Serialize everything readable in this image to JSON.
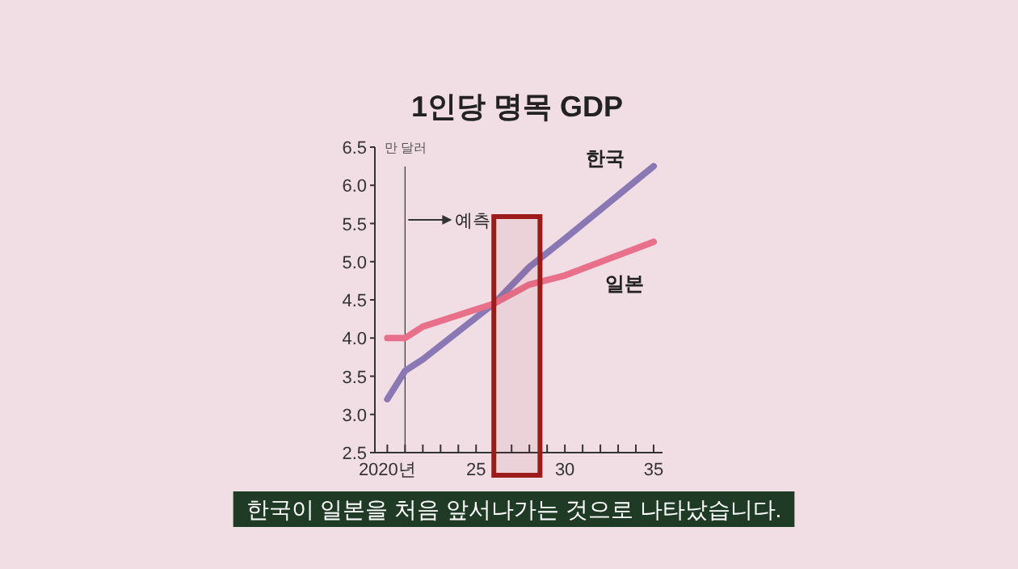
{
  "chart_data": {
    "type": "line",
    "title": "1인당 명목 GDP",
    "ylabel": "만 달러",
    "annotations": [
      "한국이 일본을 처음 앞서나가는 것으로 나타났습니다."
    ],
    "xlim": [
      2019.3,
      2035.5
    ],
    "ylim": [
      2.5,
      6.5
    ],
    "xticks": [
      {
        "value": 2020,
        "label": "2020년"
      },
      {
        "value": 2021,
        "label": null
      },
      {
        "value": 2022,
        "label": null
      },
      {
        "value": 2023,
        "label": null
      },
      {
        "value": 2024,
        "label": null
      },
      {
        "value": 2025,
        "label": "25"
      },
      {
        "value": 2026,
        "label": null
      },
      {
        "value": 2027,
        "label": null
      },
      {
        "value": 2028,
        "label": null
      },
      {
        "value": 2029,
        "label": null
      },
      {
        "value": 2030,
        "label": "30"
      },
      {
        "value": 2031,
        "label": null
      },
      {
        "value": 2032,
        "label": null
      },
      {
        "value": 2033,
        "label": null
      },
      {
        "value": 2034,
        "label": null
      },
      {
        "value": 2035,
        "label": "35"
      }
    ],
    "yticks": [
      {
        "value": 2.5,
        "label": "2.5"
      },
      {
        "value": 3,
        "label": "3.0"
      },
      {
        "value": 3.5,
        "label": "3.5"
      },
      {
        "value": 4,
        "label": "4.0"
      },
      {
        "value": 4.5,
        "label": "4.5"
      },
      {
        "value": 5,
        "label": "5.0"
      },
      {
        "value": 5.5,
        "label": "5.5"
      },
      {
        "value": 6,
        "label": "6.0"
      },
      {
        "value": 6.5,
        "label": "6.5"
      }
    ],
    "ref_lines": [
      {
        "axis": "x",
        "value": 2021,
        "label": "예측",
        "color": "#333333"
      }
    ],
    "bands": [
      {
        "axis": "x",
        "from": 2026,
        "to": 2028.6,
        "color": "#9b1b1b"
      }
    ],
    "series": [
      {
        "name": "한국",
        "color": "#8a78b5",
        "x": [
          2020,
          2021,
          2022,
          2026,
          2028,
          2030,
          2035
        ],
        "values": [
          3.2,
          3.57,
          3.72,
          4.45,
          4.93,
          5.3,
          6.25
        ]
      },
      {
        "name": "일본",
        "color": "#e8708a",
        "x": [
          2020,
          2021,
          2022,
          2026,
          2028,
          2030,
          2035
        ],
        "values": [
          4.0,
          4.0,
          4.15,
          4.45,
          4.7,
          4.82,
          5.26
        ]
      }
    ]
  }
}
